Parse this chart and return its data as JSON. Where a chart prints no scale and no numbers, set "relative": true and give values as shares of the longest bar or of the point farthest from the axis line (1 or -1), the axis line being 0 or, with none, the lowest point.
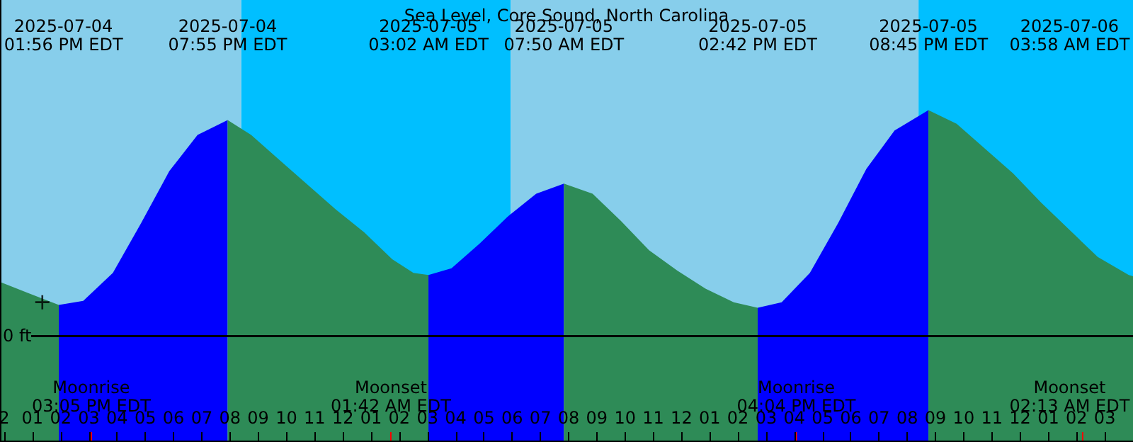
{
  "chart_data": {
    "type": "area",
    "title": "Sea Level, Core Sound, North Carolina",
    "relative": true,
    "xlim": [
      "2025-07-04T11:51",
      "2025-07-06T04:00"
    ],
    "xticks": [
      {
        "value": "2025-07-04T12:00",
        "label": "2"
      },
      {
        "value": "2025-07-04T13:00",
        "label": "01"
      },
      {
        "value": "2025-07-04T14:00",
        "label": "02"
      },
      {
        "value": "2025-07-04T15:00",
        "label": "03"
      },
      {
        "value": "2025-07-04T16:00",
        "label": "04"
      },
      {
        "value": "2025-07-04T17:00",
        "label": "05"
      },
      {
        "value": "2025-07-04T18:00",
        "label": "06"
      },
      {
        "value": "2025-07-04T19:00",
        "label": "07"
      },
      {
        "value": "2025-07-04T20:00",
        "label": "08"
      },
      {
        "value": "2025-07-04T21:00",
        "label": "09"
      },
      {
        "value": "2025-07-04T22:00",
        "label": "10"
      },
      {
        "value": "2025-07-04T23:00",
        "label": "11"
      },
      {
        "value": "2025-07-05T00:00",
        "label": "12"
      },
      {
        "value": "2025-07-05T01:00",
        "label": "01"
      },
      {
        "value": "2025-07-05T02:00",
        "label": "02"
      },
      {
        "value": "2025-07-05T03:00",
        "label": "03"
      },
      {
        "value": "2025-07-05T04:00",
        "label": "04"
      },
      {
        "value": "2025-07-05T05:00",
        "label": "05"
      },
      {
        "value": "2025-07-05T06:00",
        "label": "06"
      },
      {
        "value": "2025-07-05T07:00",
        "label": "07"
      },
      {
        "value": "2025-07-05T08:00",
        "label": "08"
      },
      {
        "value": "2025-07-05T09:00",
        "label": "09"
      },
      {
        "value": "2025-07-05T10:00",
        "label": "10"
      },
      {
        "value": "2025-07-05T11:00",
        "label": "11"
      },
      {
        "value": "2025-07-05T12:00",
        "label": "12"
      },
      {
        "value": "2025-07-05T13:00",
        "label": "01"
      },
      {
        "value": "2025-07-05T14:00",
        "label": "02"
      },
      {
        "value": "2025-07-05T15:00",
        "label": "03"
      },
      {
        "value": "2025-07-05T16:00",
        "label": "04"
      },
      {
        "value": "2025-07-05T17:00",
        "label": "05"
      },
      {
        "value": "2025-07-05T18:00",
        "label": "06"
      },
      {
        "value": "2025-07-05T19:00",
        "label": "07"
      },
      {
        "value": "2025-07-05T20:00",
        "label": "08"
      },
      {
        "value": "2025-07-05T21:00",
        "label": "09"
      },
      {
        "value": "2025-07-05T22:00",
        "label": "10"
      },
      {
        "value": "2025-07-05T23:00",
        "label": "11"
      },
      {
        "value": "2025-07-06T00:00",
        "label": "12"
      },
      {
        "value": "2025-07-06T01:00",
        "label": "01"
      },
      {
        "value": "2025-07-06T02:00",
        "label": "02"
      },
      {
        "value": "2025-07-06T03:00",
        "label": "03"
      }
    ],
    "series": [
      {
        "color": "#2e8b57",
        "x": [
          "2025-07-04T11:51",
          "2025-07-04T12:51",
          "2025-07-04T13:56"
        ],
        "values": [
          0.24,
          0.19,
          0.1375
        ]
      },
      {
        "color": "#0000ff",
        "x": [
          "2025-07-04T13:56",
          "2025-07-04T14:48",
          "2025-07-04T15:51",
          "2025-07-04T16:51",
          "2025-07-04T17:51",
          "2025-07-04T18:51",
          "2025-07-04T19:55"
        ],
        "values": [
          0.1375,
          0.156,
          0.28,
          0.5,
          0.73,
          0.89,
          0.956
        ]
      },
      {
        "color": "#2e8b57",
        "x": [
          "2025-07-04T19:55",
          "2025-07-04T20:45",
          "2025-07-04T21:45",
          "2025-07-04T22:45",
          "2025-07-04T23:45",
          "2025-07-05T00:45",
          "2025-07-05T01:45",
          "2025-07-05T02:30",
          "2025-07-05T03:02"
        ],
        "values": [
          0.956,
          0.89,
          0.78,
          0.67,
          0.56,
          0.46,
          0.34,
          0.28,
          0.27
        ]
      },
      {
        "color": "#0000ff",
        "x": [
          "2025-07-05T03:02",
          "2025-07-05T03:51",
          "2025-07-05T04:51",
          "2025-07-05T05:51",
          "2025-07-05T06:51",
          "2025-07-05T07:50"
        ],
        "values": [
          0.27,
          0.3,
          0.41,
          0.53,
          0.63,
          0.675
        ]
      },
      {
        "color": "#2e8b57",
        "x": [
          "2025-07-05T07:50",
          "2025-07-05T08:51",
          "2025-07-05T09:51",
          "2025-07-05T10:51",
          "2025-07-05T11:51",
          "2025-07-05T12:51",
          "2025-07-05T13:51",
          "2025-07-05T14:42"
        ],
        "values": [
          0.675,
          0.63,
          0.51,
          0.38,
          0.29,
          0.21,
          0.15,
          0.125
        ]
      },
      {
        "color": "#0000ff",
        "x": [
          "2025-07-05T14:42",
          "2025-07-05T15:33",
          "2025-07-05T16:33",
          "2025-07-05T17:33",
          "2025-07-05T18:33",
          "2025-07-05T19:33",
          "2025-07-05T20:45"
        ],
        "values": [
          0.125,
          0.15,
          0.28,
          0.5,
          0.74,
          0.91,
          1
        ]
      },
      {
        "color": "#2e8b57",
        "x": [
          "2025-07-05T20:45",
          "2025-07-05T21:45",
          "2025-07-05T22:45",
          "2025-07-05T23:45",
          "2025-07-06T00:45",
          "2025-07-06T01:45",
          "2025-07-06T02:45",
          "2025-07-06T03:51",
          "2025-07-06T04:00"
        ],
        "values": [
          1,
          0.94,
          0.83,
          0.72,
          0.59,
          0.47,
          0.35,
          0.27,
          0.265
        ]
      },
      {
        "type": "scatter",
        "marker": "cross",
        "color": "#000000",
        "x": [
          "2025-07-04T13:21"
        ],
        "values": [
          0.15
        ]
      }
    ],
    "bands": [
      {
        "axis": "x",
        "from": "2025-07-04T11:51",
        "to": "2025-07-04T20:24",
        "color": "#87ceeb"
      },
      {
        "axis": "x",
        "from": "2025-07-04T20:24",
        "to": "2025-07-05T05:57",
        "color": "#00bfff"
      },
      {
        "axis": "x",
        "from": "2025-07-05T05:57",
        "to": "2025-07-05T20:24",
        "color": "#87ceeb"
      },
      {
        "axis": "x",
        "from": "2025-07-05T20:24",
        "to": "2025-07-06T04:00",
        "color": "#00bfff"
      }
    ],
    "ref_lines": [
      {
        "axis": "y",
        "value": 0,
        "label": "0 ft",
        "color": "#000000"
      },
      {
        "axis": "x",
        "value": "2025-07-04T15:05",
        "label": "Moonrise\n03:05 PM EDT",
        "color": "#ff0000"
      },
      {
        "axis": "x",
        "value": "2025-07-05T01:42",
        "label": "Moonset\n01:42 AM EDT",
        "color": "#ff0000"
      },
      {
        "axis": "x",
        "value": "2025-07-05T16:04",
        "label": "Moonrise\n04:04 PM EDT",
        "color": "#ff0000"
      },
      {
        "axis": "x",
        "value": "2025-07-06T02:13",
        "label": "Moonset\n02:13 AM EDT",
        "color": "#ff0000"
      }
    ],
    "annotations": [
      "2025-07-04\n01:56 PM EDT",
      "2025-07-04\n07:55 PM EDT",
      "2025-07-05\n03:02 AM EDT",
      "2025-07-05\n07:50 AM EDT",
      "2025-07-05\n02:42 PM EDT",
      "2025-07-05\n08:45 PM EDT",
      "2025-07-06\n03:58 AM EDT"
    ]
  }
}
